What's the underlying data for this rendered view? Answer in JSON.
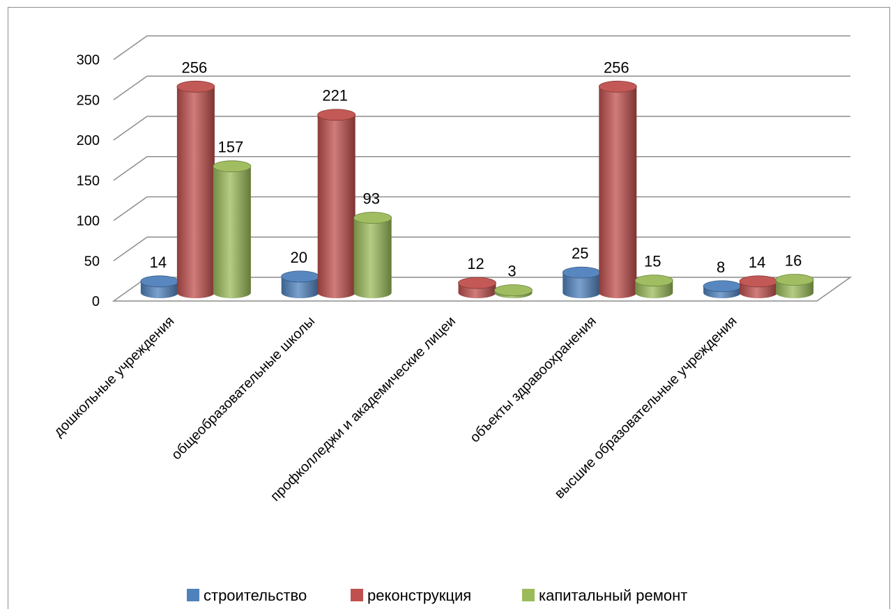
{
  "chart_data": {
    "type": "bar",
    "style": "3d-cylinder",
    "categories": [
      "дошкольные учреждения",
      "общеобразовательные школы",
      "профколледжи и академические лицеи",
      "объекты здравоохранения",
      "высшие образовательные учреждения"
    ],
    "series": [
      {
        "name": "строительство",
        "color": "#4f81bd",
        "values": [
          14,
          20,
          null,
          25,
          8
        ]
      },
      {
        "name": "реконструкция",
        "color": "#c0504d",
        "values": [
          256,
          221,
          12,
          256,
          14
        ]
      },
      {
        "name": "капитальный ремонт",
        "color": "#9bbb59",
        "values": [
          157,
          93,
          3,
          15,
          16
        ]
      }
    ],
    "ylim": [
      0,
      300
    ],
    "yticks": [
      0,
      50,
      100,
      150,
      200,
      250,
      300
    ],
    "grid": true,
    "legend_position": "bottom"
  }
}
